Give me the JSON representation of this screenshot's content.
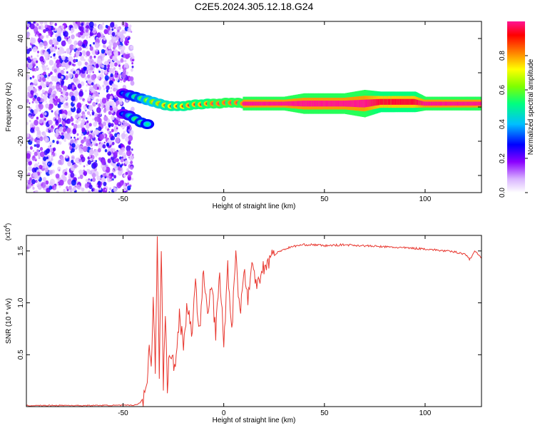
{
  "title": "C2E5.2024.305.12.18.G24",
  "colors": {
    "line": "#e8372f",
    "background": "#ffffff",
    "axis": "#000000"
  },
  "chart_data": [
    {
      "type": "heatmap",
      "xlabel": "Height of straight line (km)",
      "ylabel": "Frequency (Hz)",
      "xlim": [
        -98,
        128
      ],
      "ylim": [
        -50,
        50
      ],
      "x_ticks": [
        -50,
        0,
        50,
        100
      ],
      "y_ticks": [
        -40,
        -20,
        0,
        20,
        40
      ],
      "colorbar": {
        "label": "Normalized spectral amplitude",
        "range": [
          0,
          1
        ],
        "ticks": [
          0.0,
          0.2,
          0.4,
          0.6,
          0.8
        ],
        "colormap": [
          "#ffffff",
          "#d9b3ff",
          "#8b00ff",
          "#0000ff",
          "#00ffff",
          "#00ff00",
          "#ffff00",
          "#ff7f00",
          "#ff0000",
          "#ff1493"
        ]
      },
      "noise_region": {
        "x_range": [
          -98,
          -45
        ],
        "amplitude": [
          0.05,
          0.3
        ]
      },
      "upper_branch": {
        "x": [
          -50,
          -47,
          -44,
          -41,
          -38,
          -35,
          -32,
          -29,
          -26,
          -23,
          -20,
          -17,
          -14,
          -11,
          -8,
          -5,
          -2,
          1,
          4,
          7,
          10
        ],
        "freq": [
          8,
          7,
          6,
          5,
          4,
          3,
          2,
          1,
          0.5,
          0.5,
          0.5,
          1,
          1.5,
          1.5,
          2,
          2,
          2,
          2.5,
          2.5,
          2.5,
          2
        ],
        "amplitude": [
          0.35,
          0.45,
          0.55,
          0.6,
          0.7,
          0.75,
          0.8,
          0.85,
          0.9,
          0.9,
          0.9,
          0.95,
          0.95,
          0.95,
          0.95,
          1.0,
          1.0,
          1.0,
          1.0,
          1.0,
          1.0
        ]
      },
      "lower_branch": {
        "x": [
          -50,
          -47,
          -44,
          -41,
          -38
        ],
        "freq": [
          -4,
          -5,
          -7,
          -9,
          -10
        ],
        "amplitude": [
          0.35,
          0.45,
          0.55,
          0.55,
          0.5
        ]
      },
      "steady_band": {
        "x": [
          10,
          20,
          30,
          40,
          50,
          60,
          70,
          78,
          85,
          95,
          100,
          110,
          120,
          128
        ],
        "freq": [
          2,
          2,
          2,
          2,
          2,
          2,
          2,
          3,
          3,
          3,
          2,
          2,
          2,
          2
        ],
        "amplitude": [
          1.0,
          1.0,
          1.0,
          1.0,
          1.0,
          1.0,
          1.0,
          0.95,
          0.95,
          0.95,
          1.0,
          1.0,
          1.0,
          1.0
        ],
        "halfwidth": [
          2,
          2,
          2,
          3,
          3,
          3,
          4,
          3,
          3,
          3,
          2,
          2,
          2,
          2
        ]
      }
    },
    {
      "type": "line",
      "xlabel": "Height of straight line (km)",
      "ylabel": "SNR (10 * v/v)",
      "y_multiplier": "(x10^4)",
      "xlim": [
        -98,
        128
      ],
      "ylim": [
        0,
        1.65
      ],
      "x_ticks": [
        -50,
        0,
        50,
        100
      ],
      "y_ticks": [
        0.5,
        1.0,
        1.5
      ],
      "series": [
        {
          "x": [
            -98,
            -90,
            -80,
            -70,
            -60,
            -50,
            -44,
            -42,
            -40,
            -38,
            -37,
            -36,
            -35,
            -34,
            -33,
            -32,
            -31,
            -30,
            -29,
            -28,
            -27,
            -26,
            -24,
            -22,
            -20,
            -18,
            -16,
            -14,
            -12,
            -10,
            -8,
            -6,
            -4,
            -2,
            0,
            2,
            4,
            6,
            8,
            10,
            12,
            14,
            16,
            20,
            24,
            28,
            32,
            36,
            40,
            45,
            50,
            60,
            70,
            80,
            90,
            100,
            110,
            115,
            120,
            122,
            125,
            128
          ],
          "y": [
            0.01,
            0.01,
            0.012,
            0.01,
            0.012,
            0.012,
            0.015,
            0.03,
            0.08,
            0.25,
            0.6,
            0.35,
            1.1,
            0.4,
            1.58,
            0.3,
            1.55,
            0.2,
            0.9,
            0.2,
            0.5,
            0.45,
            0.4,
            0.9,
            0.6,
            1.0,
            0.7,
            1.15,
            0.75,
            1.3,
            0.85,
            1.2,
            0.7,
            1.3,
            0.6,
            1.35,
            0.75,
            1.5,
            0.9,
            1.3,
            1.05,
            1.35,
            1.2,
            1.35,
            1.45,
            1.5,
            1.53,
            1.55,
            1.56,
            1.56,
            1.55,
            1.56,
            1.55,
            1.54,
            1.53,
            1.52,
            1.5,
            1.49,
            1.47,
            1.42,
            1.5,
            1.43
          ]
        }
      ]
    }
  ]
}
